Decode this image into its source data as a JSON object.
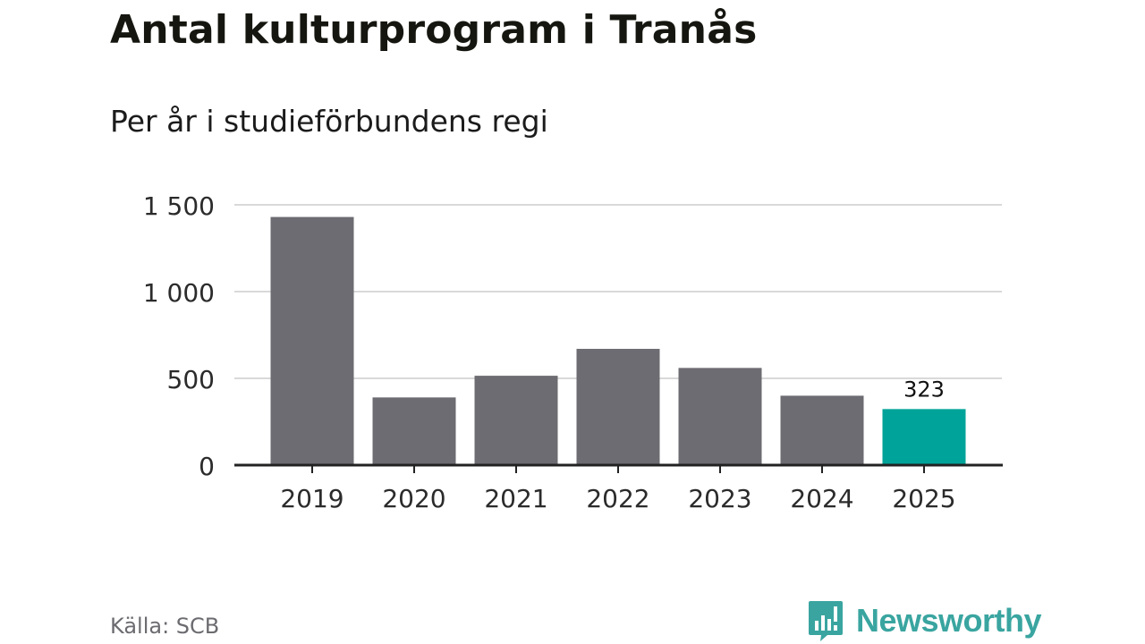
{
  "title": "Antal kulturprogram i Tranås",
  "subtitle": "Per år i studieförbundens regi",
  "source": "Källa: SCB",
  "logo_text": "Newsworthy",
  "colors": {
    "bar": "#6d6c72",
    "highlight": "#00a399",
    "grid": "#d9d9d9",
    "axis": "#222222",
    "tick_text": "#2b2b2b",
    "logo": "#3aa5a0"
  },
  "chart_data": {
    "type": "bar",
    "title": "Antal kulturprogram i Tranås",
    "subtitle": "Per år i studieförbundens regi",
    "categories": [
      "2019",
      "2020",
      "2021",
      "2022",
      "2023",
      "2024",
      "2025"
    ],
    "values": [
      1430,
      390,
      515,
      670,
      560,
      400,
      323
    ],
    "highlight_index": 6,
    "data_labels": [
      {
        "index": 6,
        "text": "323"
      }
    ],
    "ylim": [
      0,
      1500
    ],
    "yticks": [
      0,
      500,
      1000,
      1500
    ],
    "ytick_labels": [
      "0",
      "500",
      "1 000",
      "1 500"
    ],
    "xlabel": "",
    "ylabel": "",
    "grid": true,
    "legend": "none"
  }
}
